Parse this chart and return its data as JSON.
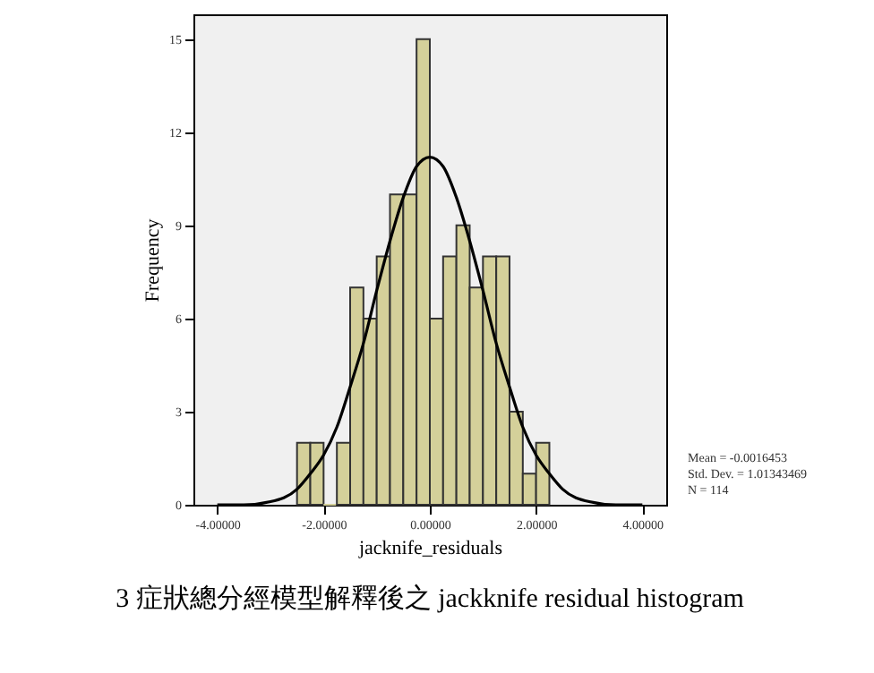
{
  "chart_data": {
    "type": "histogram",
    "xlabel": "jacknife_residuals",
    "ylabel": "Frequency",
    "bins": [
      -2.5,
      -2.25,
      -2.0,
      -1.75,
      -1.5,
      -1.25,
      -1.0,
      -0.75,
      -0.5,
      -0.25,
      0.0,
      0.25,
      0.5,
      0.75,
      1.0,
      1.25,
      1.5,
      1.75,
      2.0,
      2.25
    ],
    "values": [
      2,
      2,
      0,
      2,
      7,
      6,
      8,
      10,
      10,
      15,
      6,
      8,
      9,
      7,
      8,
      8,
      3,
      1,
      2
    ],
    "color": "#d4d09a",
    "series": [
      {
        "type": "line",
        "color": "#000000",
        "x": [
          -4,
          -3.5,
          -3,
          -2.5,
          -2.25,
          -2,
          -1.75,
          -1.5,
          -1.25,
          -1,
          -0.75,
          -0.5,
          -0.25,
          0,
          0.25,
          0.5,
          0.75,
          1,
          1.25,
          1.5,
          1.75,
          2,
          2.25,
          2.5,
          3,
          3.5,
          4
        ],
        "values": [
          0.0,
          0.0,
          0.1,
          0.5,
          1.0,
          1.6,
          2.5,
          3.8,
          5.2,
          6.9,
          8.5,
          9.9,
          10.9,
          11.2,
          10.9,
          9.9,
          8.5,
          6.9,
          5.2,
          3.8,
          2.5,
          1.6,
          1.0,
          0.5,
          0.1,
          0.0,
          0.0
        ]
      }
    ],
    "xlim": [
      -4.45,
      4.45
    ],
    "xticks": [
      {
        "value": -4,
        "label": "-4.00000"
      },
      {
        "value": -2,
        "label": "-2.00000"
      },
      {
        "value": 0,
        "label": "0.00000"
      },
      {
        "value": 2,
        "label": "2.00000"
      },
      {
        "value": 4,
        "label": "4.00000"
      }
    ],
    "ylim": [
      0,
      15.8
    ],
    "yticks": [
      0,
      3,
      6,
      9,
      12,
      15
    ],
    "grid": false,
    "annotations": [
      "Mean = -0.0016453",
      "Std. Dev. = 1.01343469",
      "N = 114",
      "3 症狀總分經模型解釋後之 jackknife residual histogram"
    ]
  }
}
